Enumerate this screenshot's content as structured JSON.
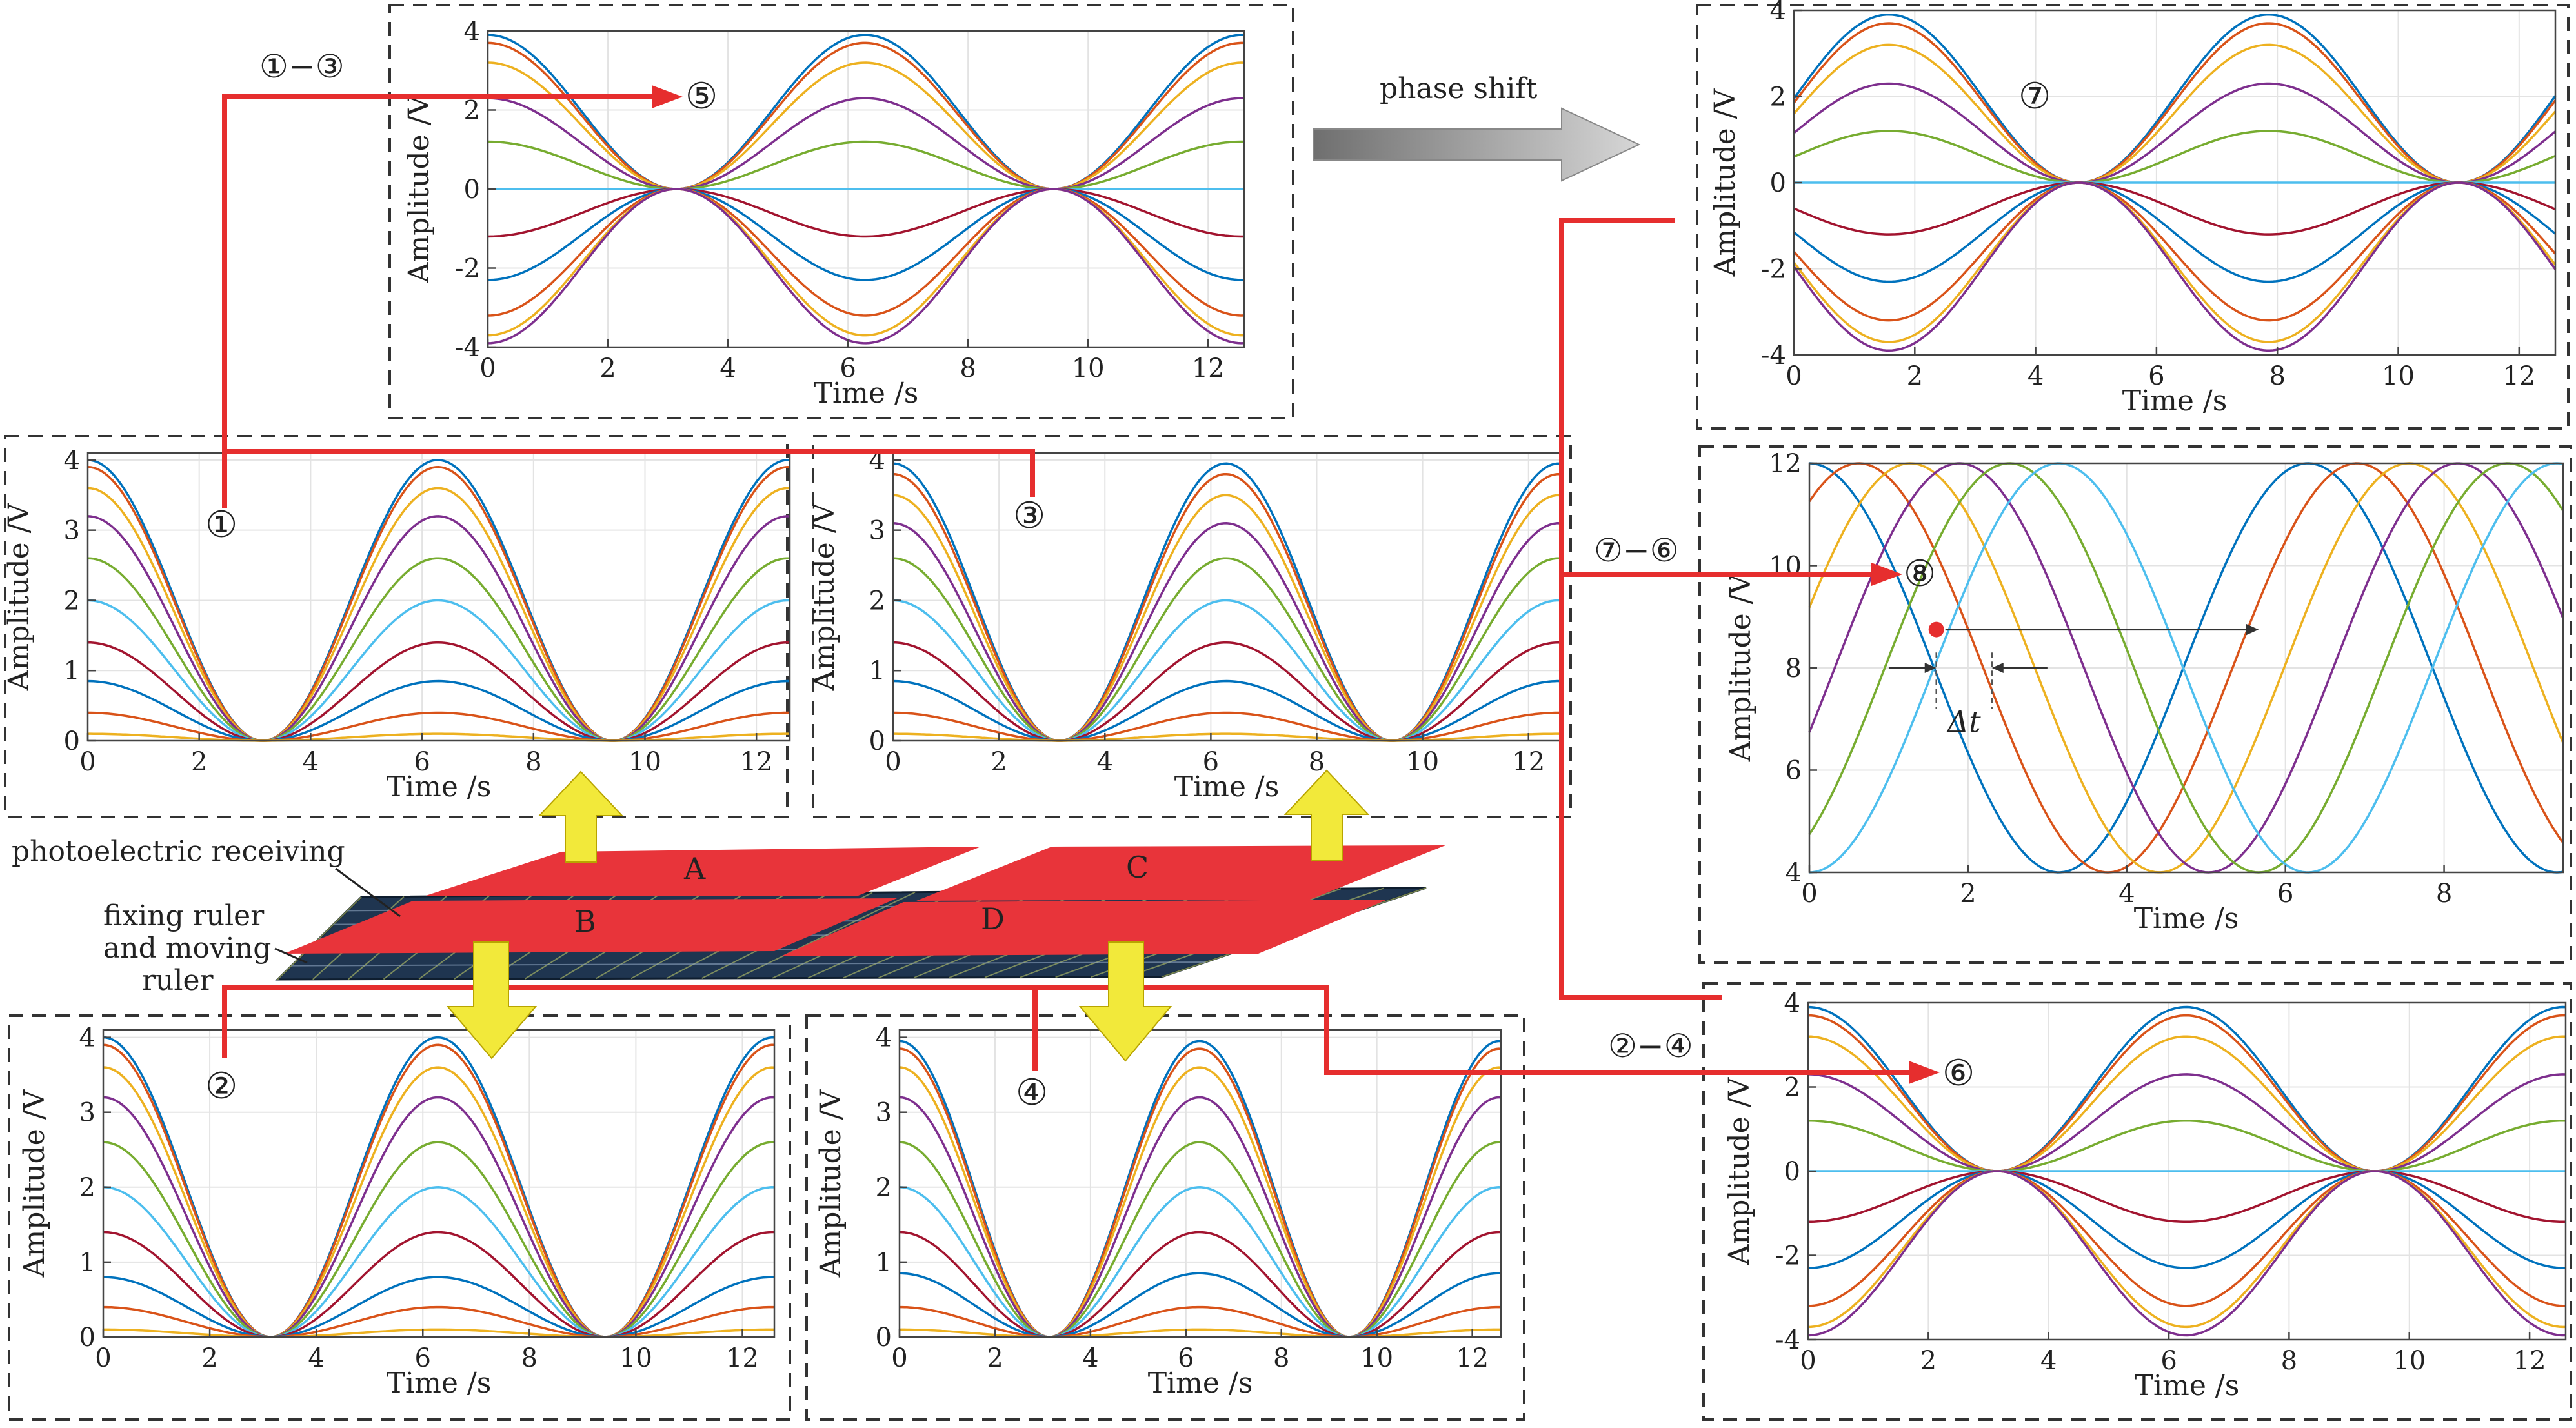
{
  "colors": {
    "series": [
      "#0072BD",
      "#D95319",
      "#EDB120",
      "#7E2F8E",
      "#77AC30",
      "#4DBEEE",
      "#A2142F",
      "#0072BD",
      "#D95319",
      "#EDB120",
      "#7E2F8E",
      "#77AC30",
      "#4DBEEE",
      "#A2142F"
    ],
    "arrow": "#e62e2e",
    "yellow": "#f2e93a",
    "plate": "#e8343a",
    "ruler": "#1f3550",
    "frame": "#333333"
  },
  "labels": {
    "c1": "①",
    "c2": "②",
    "c3": "③",
    "c4": "④",
    "c5": "⑤",
    "c6": "⑥",
    "c7": "⑦",
    "c8": "⑧",
    "op13": "①−③",
    "op24": "②−④",
    "op76": "⑦−⑥",
    "phase_shift": "phase shift",
    "photo": "photoelectric receiving",
    "fix1": "fixing ruler",
    "fix2": "and moving",
    "fix3": "ruler",
    "plateA": "A",
    "plateB": "B",
    "plateC": "C",
    "plateD": "D",
    "delta_t": "Δt"
  },
  "chart_data": [
    {
      "id": "p1",
      "type": "line",
      "xlabel": "Time /s",
      "ylabel": "Amplitude /V",
      "xlim": [
        0,
        12.6
      ],
      "ylim": [
        0,
        4.1
      ],
      "xticks": [
        0,
        2,
        4,
        6,
        8,
        10,
        12
      ],
      "yticks": [
        0,
        1,
        2,
        3,
        4
      ],
      "series": {
        "formula": "A*cos(x/2)^2",
        "amplitudes": [
          4.0,
          3.9,
          3.6,
          3.2,
          2.6,
          2.0,
          1.4,
          0.85,
          0.4,
          0.1
        ]
      }
    },
    {
      "id": "p3",
      "type": "line",
      "xlabel": "Time /s",
      "ylabel": "Amplitude /V",
      "xlim": [
        0,
        12.6
      ],
      "ylim": [
        0,
        4.1
      ],
      "xticks": [
        0,
        2,
        4,
        6,
        8,
        10,
        12
      ],
      "yticks": [
        0,
        1,
        2,
        3,
        4
      ],
      "series": {
        "formula": "A*cos(x/2)^2",
        "amplitudes": [
          3.95,
          3.8,
          3.5,
          3.1,
          2.6,
          2.0,
          1.4,
          0.85,
          0.4,
          0.1
        ]
      }
    },
    {
      "id": "p2",
      "type": "line",
      "xlabel": "Time /s",
      "ylabel": "Amplitude /V",
      "xlim": [
        0,
        12.6
      ],
      "ylim": [
        0,
        4.1
      ],
      "xticks": [
        0,
        2,
        4,
        6,
        8,
        10,
        12
      ],
      "yticks": [
        0,
        1,
        2,
        3,
        4
      ],
      "series": {
        "formula": "A*cos(x/2)^2",
        "amplitudes": [
          4.0,
          3.9,
          3.6,
          3.2,
          2.6,
          2.0,
          1.4,
          0.8,
          0.4,
          0.1
        ]
      }
    },
    {
      "id": "p4",
      "type": "line",
      "xlabel": "Time /s",
      "ylabel": "Amplitude /V",
      "xlim": [
        0,
        12.6
      ],
      "ylim": [
        0,
        4.1
      ],
      "xticks": [
        0,
        2,
        4,
        6,
        8,
        10,
        12
      ],
      "yticks": [
        0,
        1,
        2,
        3,
        4
      ],
      "series": {
        "formula": "A*cos(x/2)^2",
        "amplitudes": [
          3.95,
          3.85,
          3.6,
          3.2,
          2.6,
          2.0,
          1.4,
          0.85,
          0.4,
          0.1
        ]
      }
    },
    {
      "id": "p5",
      "type": "line",
      "xlabel": "Time /s",
      "ylabel": "Amplitude /V",
      "xlim": [
        0,
        12.6
      ],
      "ylim": [
        -4,
        4
      ],
      "xticks": [
        0,
        2,
        4,
        6,
        8,
        10,
        12
      ],
      "yticks": [
        -4,
        -2,
        0,
        2,
        4
      ],
      "series": {
        "formula": "A*(1+cos(x))",
        "amplitudes": [
          1.95,
          1.85,
          1.6,
          1.15,
          0.6,
          0,
          -0.6,
          -1.15,
          -1.6,
          -1.85,
          -1.95
        ]
      }
    },
    {
      "id": "p7",
      "type": "line",
      "xlabel": "Time /s",
      "ylabel": "Amplitude /V",
      "xlim": [
        0,
        12.6
      ],
      "ylim": [
        -4,
        4
      ],
      "xticks": [
        0,
        2,
        4,
        6,
        8,
        10,
        12
      ],
      "yticks": [
        -4,
        -2,
        0,
        2,
        4
      ],
      "series": {
        "formula": "A*(1+sin(x))",
        "amplitudes": [
          1.95,
          1.85,
          1.6,
          1.15,
          0.6,
          0,
          -0.6,
          -1.15,
          -1.6,
          -1.85,
          -1.95
        ]
      }
    },
    {
      "id": "p6",
      "type": "line",
      "xlabel": "Time /s",
      "ylabel": "Amplitude /V",
      "xlim": [
        0,
        12.6
      ],
      "ylim": [
        -4,
        4
      ],
      "xticks": [
        0,
        2,
        4,
        6,
        8,
        10,
        12
      ],
      "yticks": [
        -4,
        -2,
        0,
        2,
        4
      ],
      "series": {
        "formula": "A*(1+cos(x))",
        "amplitudes": [
          1.95,
          1.85,
          1.6,
          1.15,
          0.6,
          0,
          -0.6,
          -1.15,
          -1.6,
          -1.85,
          -1.95
        ]
      }
    },
    {
      "id": "p8",
      "type": "line",
      "xlabel": "Time /s",
      "ylabel": "Amplitude /V",
      "xlim": [
        0,
        9.5
      ],
      "ylim": [
        4,
        12
      ],
      "xticks": [
        0,
        2,
        4,
        6,
        8
      ],
      "yticks": [
        4,
        6,
        8,
        10,
        12
      ],
      "series": {
        "formula": "8+4*sin(x-p)",
        "phases": [
          -1.57,
          -0.95,
          -0.3,
          0.32,
          0.95,
          1.57
        ]
      }
    }
  ]
}
